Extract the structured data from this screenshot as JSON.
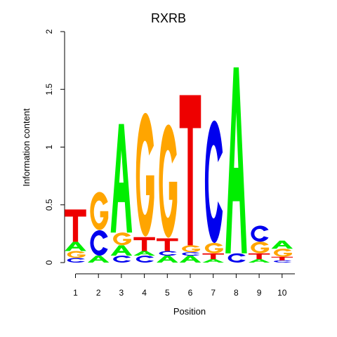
{
  "chart_data": {
    "type": "sequence-logo",
    "title": "RXRB",
    "xlabel": "Position",
    "ylabel": "Information content",
    "ylim": [
      0,
      2
    ],
    "yticks": [
      {
        "value": 0,
        "label": "0"
      },
      {
        "value": 0.5,
        "label": "0.5"
      },
      {
        "value": 1,
        "label": "1"
      },
      {
        "value": 1.5,
        "label": "1.5"
      },
      {
        "value": 2,
        "label": "2"
      }
    ],
    "categories": [
      "1",
      "2",
      "3",
      "4",
      "5",
      "6",
      "7",
      "8",
      "9",
      "10"
    ],
    "colors": {
      "A": "#00ee00",
      "C": "#0000ee",
      "G": "#ffa500",
      "T": "#ee0000"
    },
    "positions": [
      {
        "label": "1",
        "letters": [
          [
            "C",
            0.04
          ],
          [
            "G",
            0.06
          ],
          [
            "A",
            0.08
          ],
          [
            "T",
            0.28
          ]
        ]
      },
      {
        "label": "2",
        "letters": [
          [
            "A",
            0.06
          ],
          [
            "C",
            0.22
          ],
          [
            "G",
            0.33
          ]
        ]
      },
      {
        "label": "3",
        "letters": [
          [
            "C",
            0.06
          ],
          [
            "A",
            0.09
          ],
          [
            "G",
            0.11
          ],
          [
            "A",
            0.94
          ]
        ]
      },
      {
        "label": "4",
        "letters": [
          [
            "C",
            0.06
          ],
          [
            "A",
            0.04
          ],
          [
            "T",
            0.12
          ],
          [
            "G",
            1.07
          ]
        ]
      },
      {
        "label": "5",
        "letters": [
          [
            "A",
            0.06
          ],
          [
            "C",
            0.04
          ],
          [
            "T",
            0.11
          ],
          [
            "G",
            0.98
          ]
        ]
      },
      {
        "label": "6",
        "letters": [
          [
            "A",
            0.06
          ],
          [
            "C",
            0.03
          ],
          [
            "G",
            0.06
          ],
          [
            "T",
            1.3
          ]
        ]
      },
      {
        "label": "7",
        "letters": [
          [
            "A",
            0.03
          ],
          [
            "T",
            0.05
          ],
          [
            "G",
            0.09
          ],
          [
            "C",
            1.06
          ]
        ]
      },
      {
        "label": "8",
        "letters": [
          [
            "C",
            0.08
          ],
          [
            "A",
            1.61
          ]
        ]
      },
      {
        "label": "9",
        "letters": [
          [
            "A",
            0.03
          ],
          [
            "T",
            0.05
          ],
          [
            "G",
            0.1
          ],
          [
            "C",
            0.14
          ]
        ]
      },
      {
        "label": "10",
        "letters": [
          [
            "C",
            0.02
          ],
          [
            "T",
            0.03
          ],
          [
            "G",
            0.07
          ],
          [
            "A",
            0.07
          ]
        ]
      }
    ]
  }
}
